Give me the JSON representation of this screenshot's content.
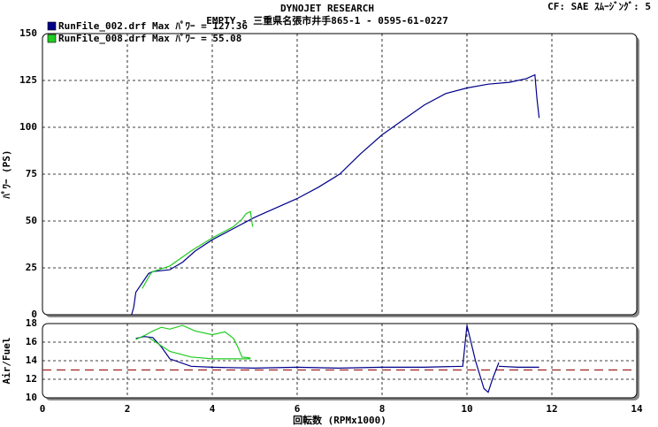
{
  "header": {
    "title": "DYNOJET  RESEARCH",
    "subtitle": "EMPTY - 三重県名張市井手865-1 - 0595-61-0227",
    "settings": "CF: SAE  ｽﾑｰｼﾞﾝｸﾞ: 5"
  },
  "chart_data": [
    {
      "type": "line",
      "ylabel": "ﾊﾟﾜｰ (PS)",
      "xlim": [
        0,
        14
      ],
      "xticks": [
        0,
        2,
        4,
        6,
        8,
        10,
        12,
        14
      ],
      "ylim": [
        0,
        150
      ],
      "yticks": [
        0,
        25,
        50,
        75,
        100,
        125,
        150
      ],
      "grid": true,
      "series": [
        {
          "name": "RunFile_002.drf Max ﾊﾟﾜｰ = 127.36",
          "color": "#00008b",
          "x": [
            2.1,
            2.15,
            2.2,
            2.35,
            2.5,
            2.6,
            3.0,
            3.3,
            3.6,
            4.0,
            4.5,
            5.0,
            5.5,
            6.0,
            6.5,
            7.0,
            7.5,
            8.0,
            8.5,
            9.0,
            9.5,
            10.0,
            10.5,
            11.0,
            11.4,
            11.6,
            11.65,
            11.7
          ],
          "values": [
            0,
            4,
            12,
            17,
            22,
            23,
            24,
            28,
            34,
            40,
            46,
            52,
            57,
            62,
            68,
            75,
            86,
            96,
            104,
            112,
            118,
            121,
            123,
            124,
            126,
            128,
            115,
            105
          ]
        },
        {
          "name": "RunFile_008.drf Max ﾊﾟﾜｰ = 55.08",
          "color": "#22cc22",
          "x": [
            2.35,
            2.45,
            2.55,
            2.6,
            3.0,
            3.5,
            4.0,
            4.5,
            4.7,
            4.8,
            4.9,
            4.95
          ],
          "values": [
            14,
            18,
            22,
            23,
            26,
            34,
            41,
            47,
            51,
            54,
            55,
            47
          ]
        }
      ]
    },
    {
      "type": "line",
      "ylabel": "Air/Fuel",
      "xlabel": "回転数 (RPMx1000)",
      "xlim": [
        0,
        14
      ],
      "xticks": [
        0,
        2,
        4,
        6,
        8,
        10,
        12,
        14
      ],
      "ylim": [
        10,
        18
      ],
      "yticks": [
        10,
        12,
        14,
        16,
        18
      ],
      "grid": true,
      "reference": {
        "value": 13,
        "color": "#a02020"
      },
      "series": [
        {
          "color": "#00008b",
          "x": [
            2.2,
            2.4,
            2.6,
            2.8,
            3.0,
            3.5,
            4.0,
            5.0,
            6.0,
            7.0,
            8.0,
            9.0,
            9.9,
            10.0,
            10.2,
            10.4,
            10.5,
            10.6,
            10.75,
            null,
            10.75,
            11.2,
            11.7
          ],
          "values": [
            16.4,
            16.6,
            16.5,
            15.5,
            14.2,
            13.4,
            13.3,
            13.2,
            13.3,
            13.2,
            13.3,
            13.3,
            13.4,
            17.8,
            14,
            11,
            10.6,
            12,
            13.8,
            null,
            13.4,
            13.3,
            13.3
          ]
        },
        {
          "color": "#22cc22",
          "x": [
            2.2,
            2.4,
            2.6,
            2.8,
            3.0,
            3.3,
            3.6,
            4.0,
            4.3,
            4.5,
            4.6,
            4.7,
            4.9,
            null,
            2.5,
            3.0,
            3.5,
            4.0,
            4.9
          ],
          "values": [
            16.3,
            16.7,
            17.2,
            17.6,
            17.4,
            17.8,
            17.2,
            16.8,
            17.1,
            16.4,
            15.5,
            14.4,
            14.3,
            null,
            16.5,
            15,
            14.4,
            14.2,
            14.2
          ]
        }
      ]
    }
  ]
}
